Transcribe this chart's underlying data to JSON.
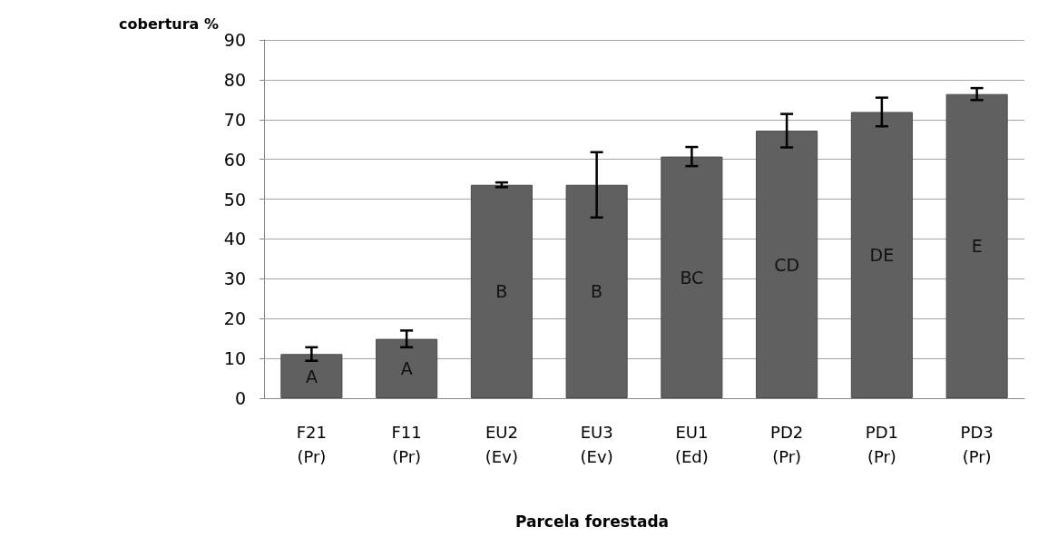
{
  "chart_data": {
    "type": "bar",
    "ylabel": "cobertura %",
    "xlabel": "Parcela forestada",
    "categories": [
      "F21\n(Pr)",
      "F11\n(Pr)",
      "EU2\n(Ev)",
      "EU3\n(Ev)",
      "EU1\n(Ed)",
      "PD2\n(Pr)",
      "PD1\n(Pr)",
      "PD3\n(Pr)"
    ],
    "values": [
      11.1,
      14.9,
      53.6,
      53.6,
      60.7,
      67.2,
      71.9,
      76.4
    ],
    "errors": [
      1.7,
      2.1,
      0.6,
      8.2,
      2.4,
      4.2,
      3.6,
      1.5
    ],
    "color": "#606060",
    "ylim": [
      0,
      90
    ],
    "yticks": [
      0,
      10,
      20,
      30,
      40,
      50,
      60,
      70,
      80,
      90
    ],
    "grid": "y",
    "annotations": [
      "A",
      "A",
      "B",
      "B",
      "BC",
      "CD",
      "DE",
      "E"
    ]
  }
}
